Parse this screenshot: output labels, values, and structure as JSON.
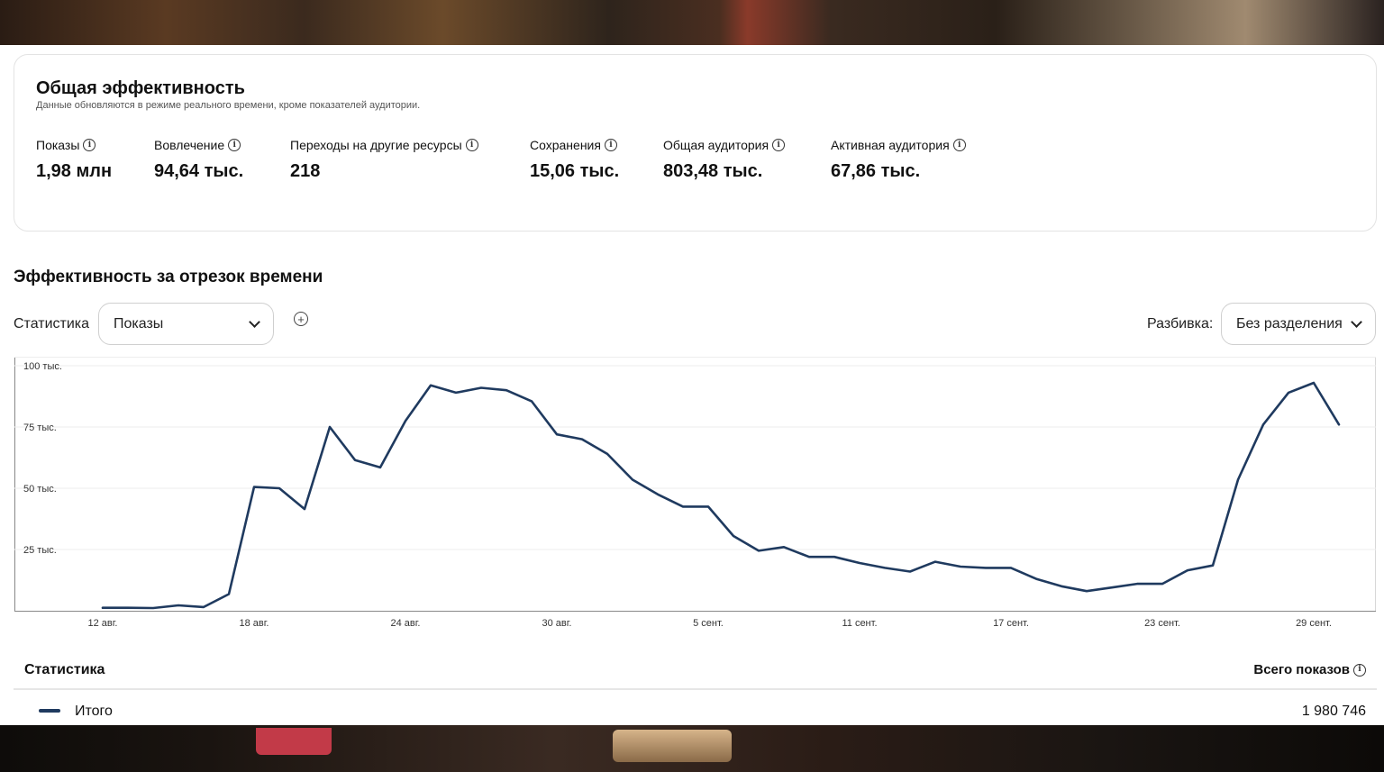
{
  "overview": {
    "title": "Общая эффективность",
    "subtitle": "Данные обновляются в режиме реального времени, кроме показателей аудитории.",
    "metrics": [
      {
        "label": "Показы",
        "value": "1,98 млн"
      },
      {
        "label": "Вовлечение",
        "value": "94,64 тыс."
      },
      {
        "label": "Переходы на другие ресурсы",
        "value": "218"
      },
      {
        "label": "Сохранения",
        "value": "15,06 тыс."
      },
      {
        "label": "Общая аудитория",
        "value": "803,48 тыс."
      },
      {
        "label": "Активная аудитория",
        "value": "67,86 тыс."
      }
    ]
  },
  "section": {
    "title": "Эффективность за отрезок времени",
    "stat_label": "Статистика",
    "stat_value": "Показы",
    "breakdown_label": "Разбивка:",
    "breakdown_value": "Без разделения"
  },
  "table": {
    "col_left": "Статистика",
    "col_right": "Всего показов",
    "row_name": "Итого",
    "row_value": "1 980 746"
  },
  "colors": {
    "series": "#1f3a5f",
    "grid": "#ececec",
    "axis": "#888888"
  },
  "chart_data": {
    "type": "line",
    "title": "",
    "xlabel": "",
    "ylabel": "",
    "ylim": [
      0,
      100000
    ],
    "yticks": [
      {
        "value": 25000,
        "label": "25 тыс."
      },
      {
        "value": 50000,
        "label": "50 тыс."
      },
      {
        "value": 75000,
        "label": "75 тыс."
      },
      {
        "value": 100000,
        "label": "100 тыс."
      }
    ],
    "xticks": [
      {
        "index": 0,
        "label": "12 авг."
      },
      {
        "index": 6,
        "label": "18 авг."
      },
      {
        "index": 12,
        "label": "24 авг."
      },
      {
        "index": 18,
        "label": "30 авг."
      },
      {
        "index": 24,
        "label": "5 сент."
      },
      {
        "index": 30,
        "label": "11 сент."
      },
      {
        "index": 36,
        "label": "17 сент."
      },
      {
        "index": 42,
        "label": "23 сент."
      },
      {
        "index": 48,
        "label": "29 сент."
      }
    ],
    "grid": true,
    "legend": "none",
    "series": [
      {
        "values": [
          1200,
          1200,
          1100,
          2200,
          1500,
          6800,
          50500,
          50000,
          41500,
          75000,
          61500,
          58500,
          77500,
          92000,
          89000,
          91000,
          90000,
          85500,
          72000,
          70000,
          64000,
          53500,
          47500,
          42500,
          42500,
          30500,
          24500,
          26000,
          22000,
          22000,
          19500,
          17500,
          16000,
          20000,
          18000,
          17500,
          17500,
          13000,
          10000,
          8000,
          9500,
          11000,
          11000,
          16500,
          18500,
          53500,
          76000,
          89000,
          93000,
          76000
        ]
      }
    ]
  }
}
